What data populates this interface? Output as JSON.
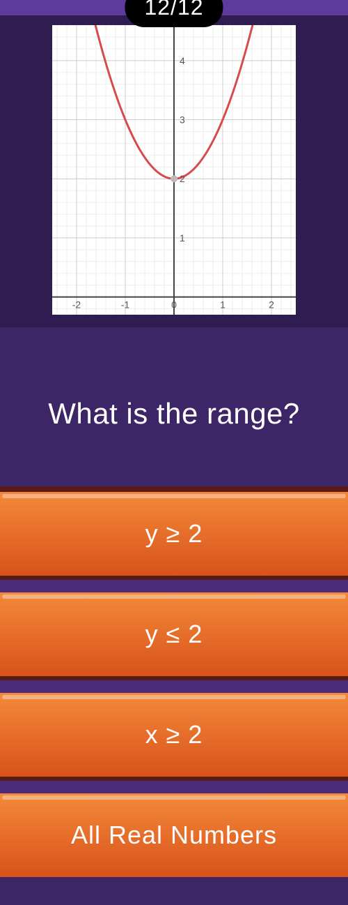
{
  "counter": "12/12",
  "question": "What is the range?",
  "answers": [
    "y ≥ 2",
    "y ≤ 2",
    "x ≥ 2",
    "All Real Numbers"
  ],
  "colors": {
    "page_bg": "#3d2668",
    "graph_section_bg": "#2f1d52",
    "top_bar": "#5e3a9e",
    "pill_bg": "#000000",
    "text": "#ffffff",
    "answer_grad_top": "#f38a3a",
    "answer_grad_bottom": "#d9521a",
    "divider_bg": "#4b2a7a",
    "divider_top": "#5a1a18"
  },
  "graph": {
    "type": "line",
    "background_color": "#ffffff",
    "curve_color": "#d94a4a",
    "curve_width": 3,
    "axis_color": "#444444",
    "grid_major_color": "#cccccc",
    "grid_minor_color": "#eeeeee",
    "xlim": [
      -2.5,
      2.5
    ],
    "ylim": [
      -0.3,
      4.6
    ],
    "x_ticks": [
      -2,
      -1,
      0,
      1,
      2
    ],
    "y_ticks": [
      1,
      2,
      3,
      4
    ],
    "vertex": [
      0,
      2
    ],
    "function": "y = x^2 + 2",
    "label_fontsize": 14,
    "label_color": "#555555",
    "vertex_marker_color": "#bbbbbb"
  }
}
